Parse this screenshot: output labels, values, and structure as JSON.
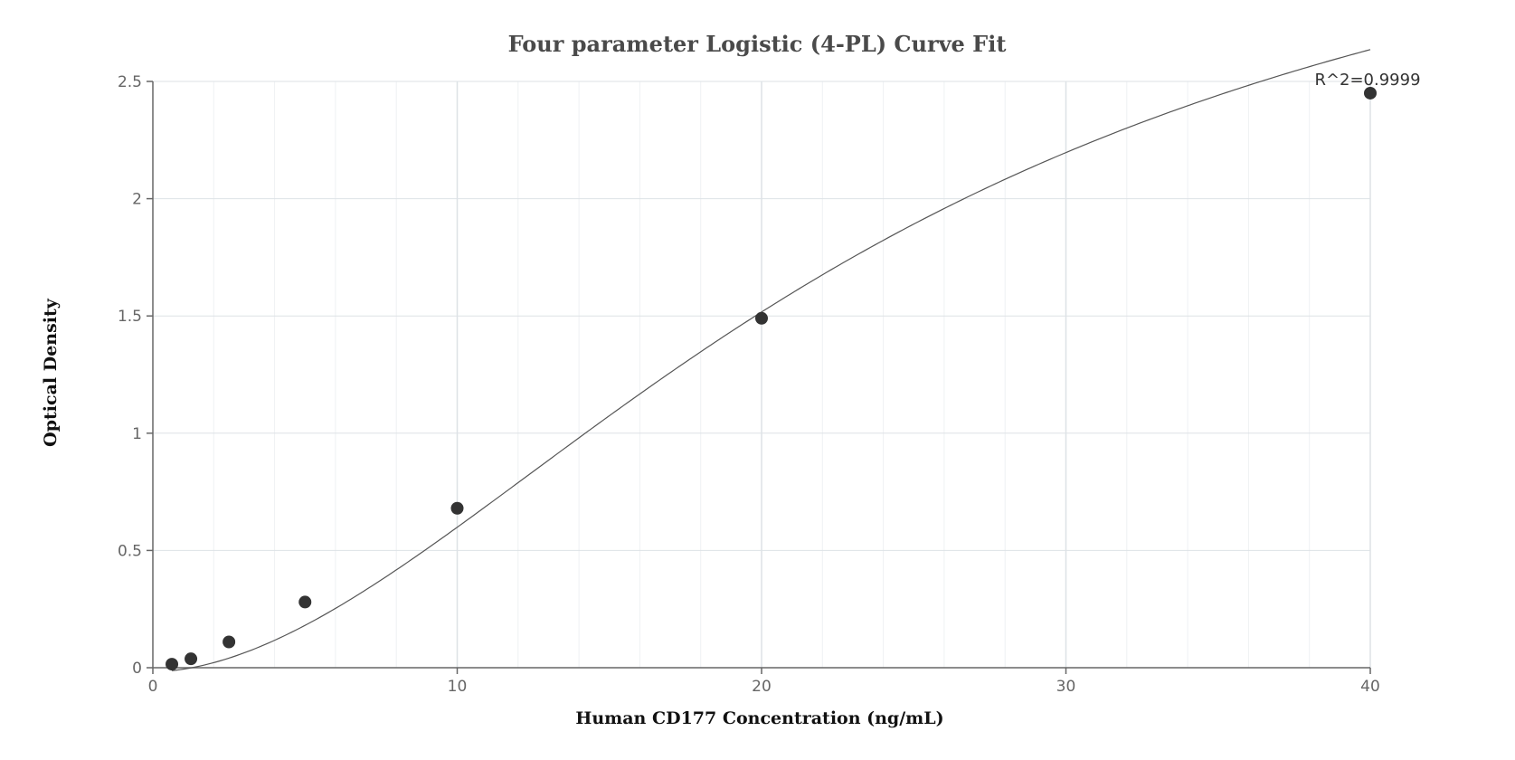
{
  "chart_data": {
    "type": "scatter",
    "title": "Four parameter Logistic (4-PL) Curve Fit",
    "xlabel": "Human CD177 Concentration (ng/mL)",
    "ylabel": "Optical Density",
    "xlim": [
      0,
      40
    ],
    "ylim": [
      0,
      2.5
    ],
    "x_ticks": [
      0,
      10,
      20,
      30,
      40
    ],
    "y_ticks": [
      0,
      0.5,
      1,
      1.5,
      2,
      2.5
    ],
    "x_tick_labels": [
      "0",
      "10",
      "20",
      "30",
      "40"
    ],
    "y_tick_labels": [
      "0",
      "0.5",
      "1",
      "1.5",
      "2",
      "2.5"
    ],
    "grid": true,
    "annotation": "R^2=0.9999",
    "points": [
      {
        "x": 0.625,
        "y": 0.015
      },
      {
        "x": 1.25,
        "y": 0.038
      },
      {
        "x": 2.5,
        "y": 0.11
      },
      {
        "x": 5,
        "y": 0.28
      },
      {
        "x": 10,
        "y": 0.68
      },
      {
        "x": 20,
        "y": 1.49
      },
      {
        "x": 40,
        "y": 2.45
      }
    ],
    "fit_curve": {
      "model": "4-PL",
      "A": -0.0174,
      "B": 1.82,
      "C": 24.34,
      "D": 3.71
    },
    "colors": {
      "marker": "#333333",
      "curve": "#555555",
      "grid_major": "#dde2e6",
      "grid_minor": "#eef1f3",
      "axis": "#666666"
    }
  }
}
